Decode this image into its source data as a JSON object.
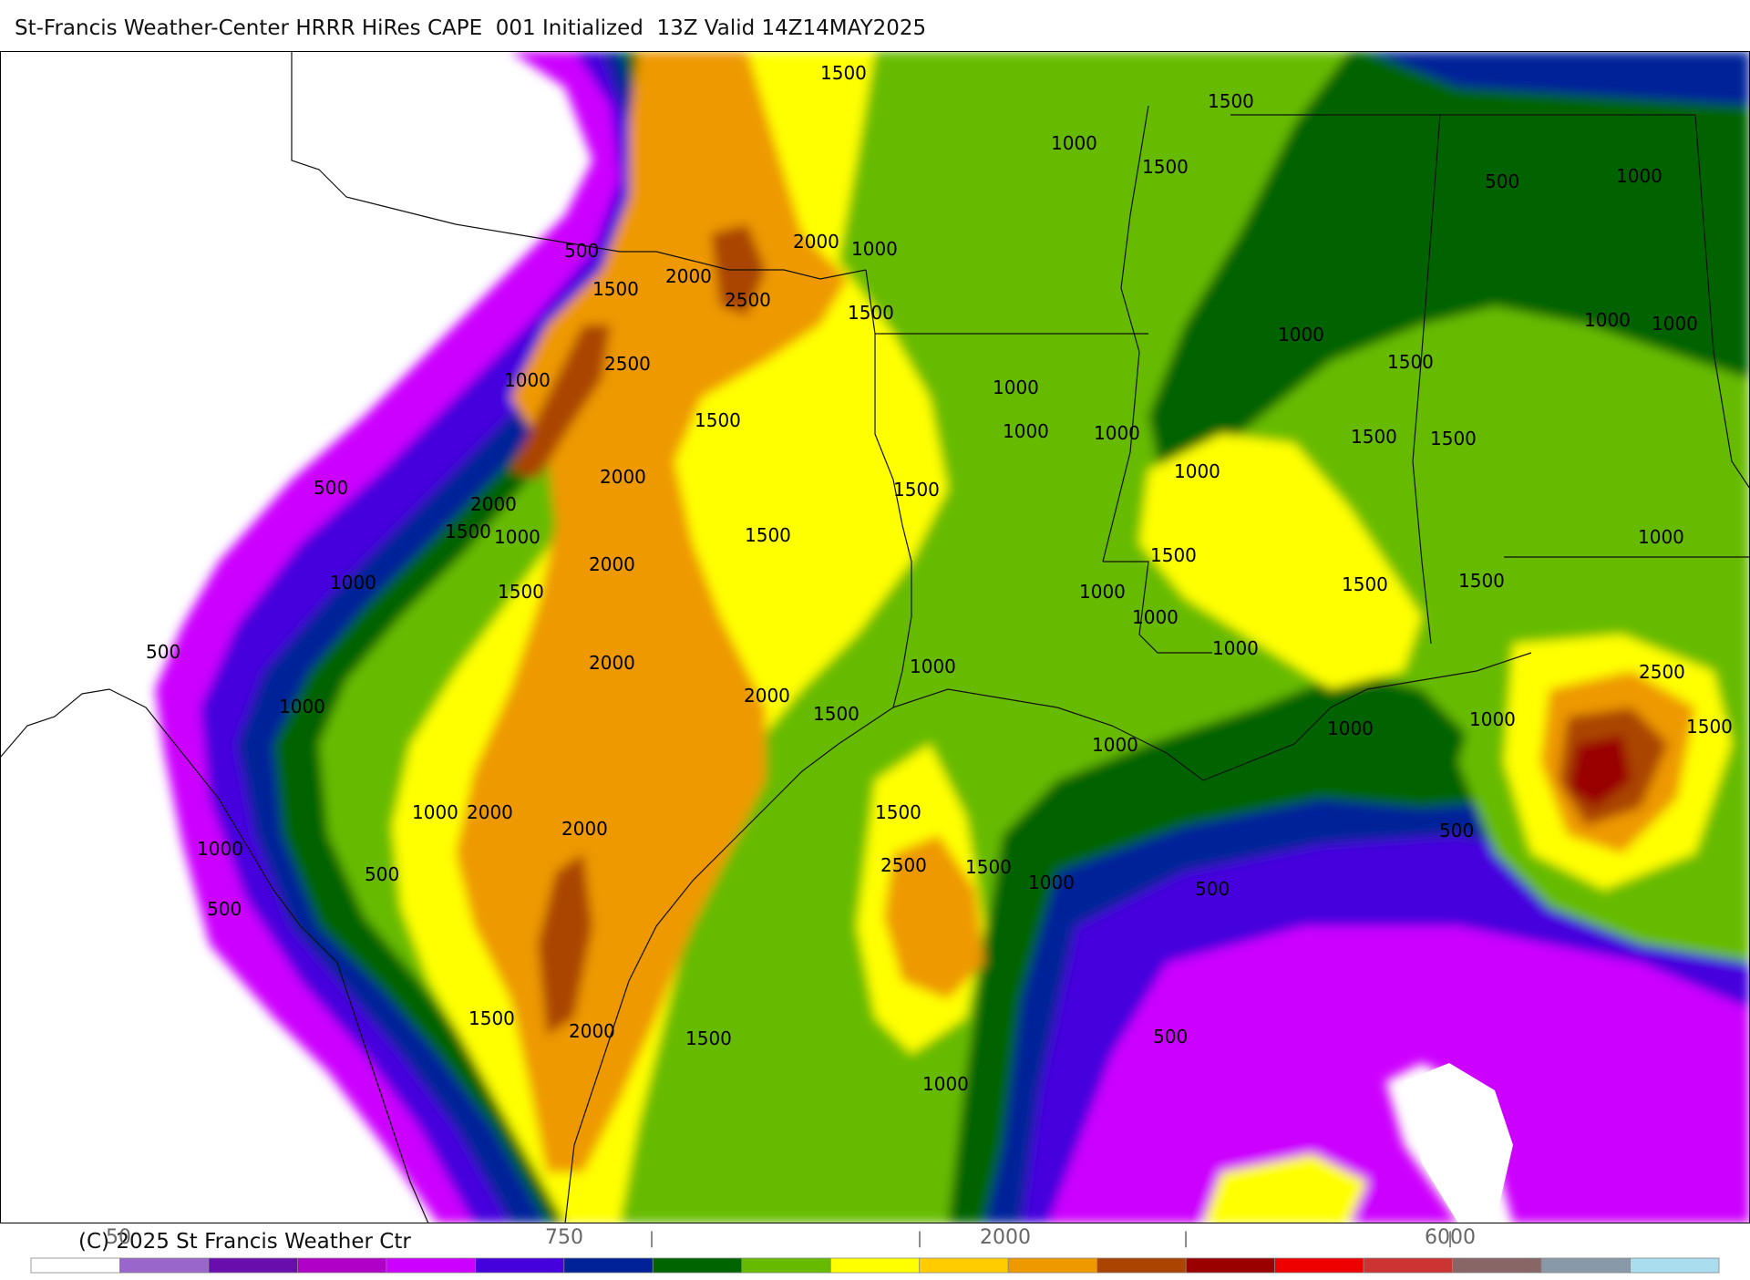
{
  "title": "St-Francis Weather-Center HRRR HiRes CAPE  001 Initialized  13Z Valid 14Z14MAY2025",
  "copyright": "(C) 2025 St Francis Weather Ctr",
  "colorbar": {
    "labels": [
      "50",
      "750",
      "2000",
      "6000"
    ],
    "tick_marks": [
      "|",
      "|",
      "|",
      "|"
    ],
    "colors": [
      "#ffffff",
      "#9966cc",
      "#6a0dad",
      "#b000c8",
      "#cc00ff",
      "#4400dd",
      "#002299",
      "#006400",
      "#66bb00",
      "#ffff00",
      "#ffcc00",
      "#ee9900",
      "#aa4400",
      "#990000",
      "#ee0000",
      "#cc3333",
      "#886666",
      "#8899aa",
      "#aaddee"
    ]
  },
  "map": {
    "contour_labels": [
      {
        "text": "1500"
      },
      {
        "text": "1500"
      },
      {
        "text": "1000"
      },
      {
        "text": "1500"
      },
      {
        "text": "500"
      },
      {
        "text": "1000"
      },
      {
        "text": "2000"
      },
      {
        "text": "1000"
      },
      {
        "text": "500"
      },
      {
        "text": "1500"
      },
      {
        "text": "2000"
      },
      {
        "text": "2500"
      },
      {
        "text": "1500"
      },
      {
        "text": "1000"
      },
      {
        "text": "1000"
      },
      {
        "text": "2500"
      },
      {
        "text": "1000"
      },
      {
        "text": "1500"
      },
      {
        "text": "1500"
      },
      {
        "text": "1000"
      },
      {
        "text": "1000"
      },
      {
        "text": "1000"
      },
      {
        "text": "1500"
      },
      {
        "text": "1500"
      },
      {
        "text": "1000"
      },
      {
        "text": "2000"
      },
      {
        "text": "500"
      },
      {
        "text": "2000"
      },
      {
        "text": "1500"
      },
      {
        "text": "1000"
      },
      {
        "text": "1500"
      },
      {
        "text": "1500"
      },
      {
        "text": "1000"
      },
      {
        "text": "2000"
      },
      {
        "text": "1500"
      },
      {
        "text": "1000"
      },
      {
        "text": "1500"
      },
      {
        "text": "1000"
      },
      {
        "text": "1000"
      },
      {
        "text": "1500"
      },
      {
        "text": "1500"
      },
      {
        "text": "500"
      },
      {
        "text": "2000"
      },
      {
        "text": "1000"
      },
      {
        "text": "1000"
      },
      {
        "text": "2000"
      },
      {
        "text": "2500"
      },
      {
        "text": "1000"
      },
      {
        "text": "1500"
      },
      {
        "text": "1000"
      },
      {
        "text": "1000"
      },
      {
        "text": "1500"
      },
      {
        "text": "1000"
      },
      {
        "text": "1000"
      },
      {
        "text": "500"
      },
      {
        "text": "2000"
      },
      {
        "text": "1000"
      },
      {
        "text": "1500"
      },
      {
        "text": "2000"
      },
      {
        "text": "1500"
      },
      {
        "text": "2500"
      },
      {
        "text": "500"
      },
      {
        "text": "1000"
      },
      {
        "text": "500"
      },
      {
        "text": "1000"
      },
      {
        "text": "500"
      },
      {
        "text": "1500"
      },
      {
        "text": "2000"
      },
      {
        "text": "1500"
      },
      {
        "text": "500"
      },
      {
        "text": "1000"
      }
    ]
  }
}
